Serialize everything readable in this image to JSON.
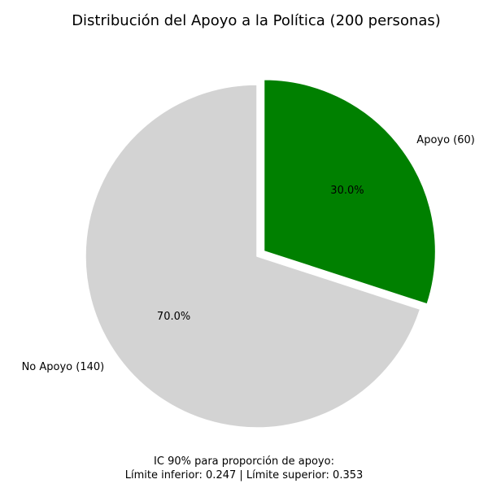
{
  "chart_data": {
    "type": "pie",
    "title": "Distribución del Apoyo a la Política (200 personas)",
    "start_angle_deg": 90,
    "counterclock": false,
    "slices": [
      {
        "label": "Apoyo (60)",
        "value": 60,
        "pct_label": "30.0%",
        "color": "#008000",
        "explode": 0.05
      },
      {
        "label": "No Apoyo (140)",
        "value": 140,
        "pct_label": "70.0%",
        "color": "#d3d3d3",
        "explode": 0
      }
    ],
    "edge_color": "#ffffff",
    "annotation": {
      "line1": "IC 90% para proporción de apoyo:",
      "line2": "Límite inferior: 0.247  |  Límite superior: 0.353"
    }
  }
}
